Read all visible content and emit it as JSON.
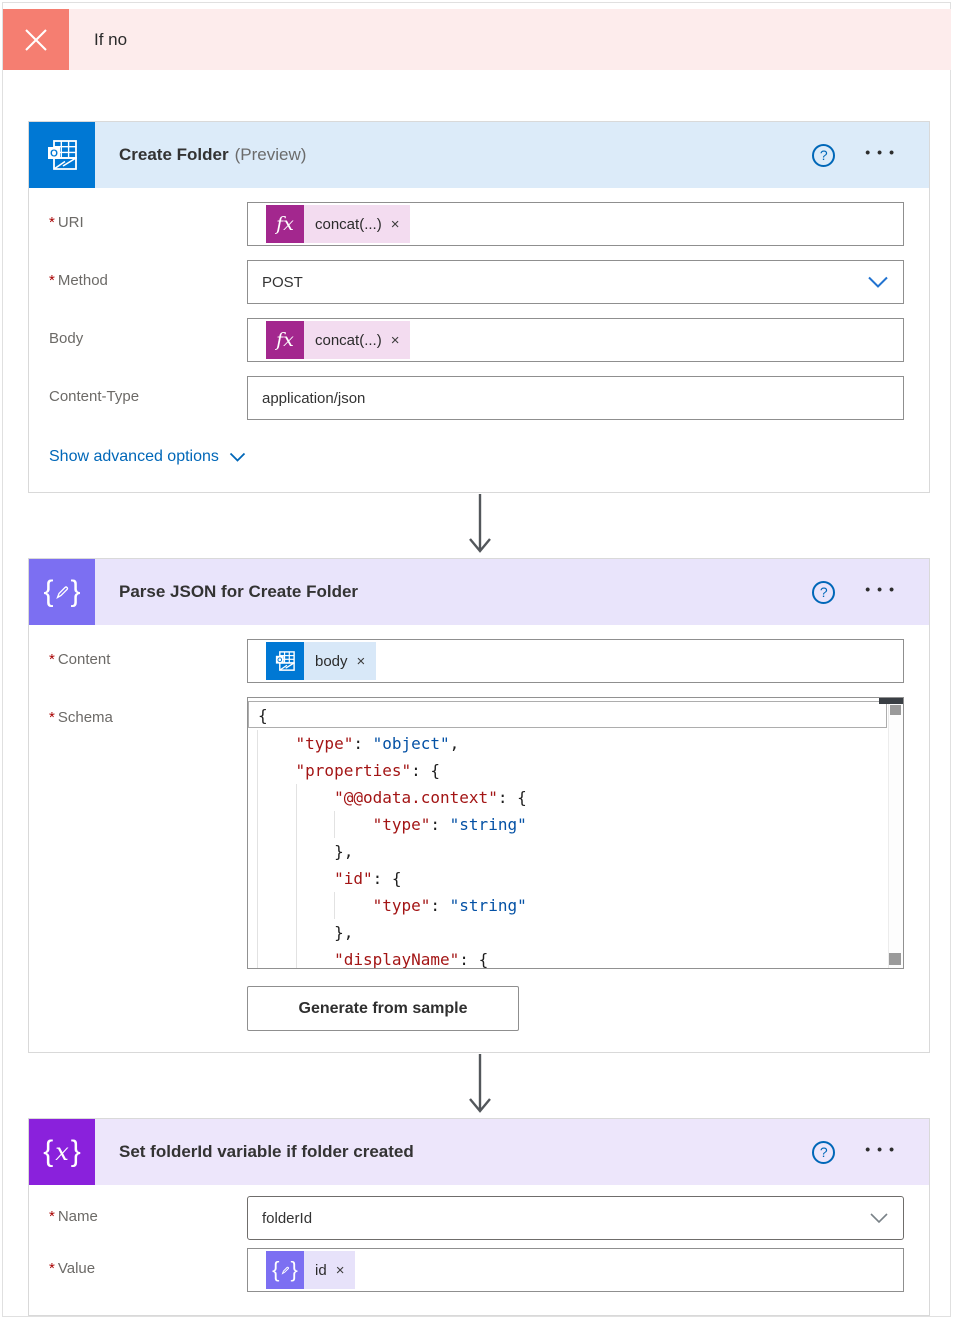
{
  "branch": {
    "title": "If no"
  },
  "cards": {
    "create_folder": {
      "title": "Create Folder",
      "suffix": "(Preview)",
      "uri_label": "URI",
      "uri_token": "concat(...)",
      "method_label": "Method",
      "method_value": "POST",
      "body_label": "Body",
      "body_token": "concat(...)",
      "content_type_label": "Content-Type",
      "content_type_value": "application/json",
      "advanced_link": "Show advanced options"
    },
    "parse_json": {
      "title": "Parse JSON for Create Folder",
      "content_label": "Content",
      "content_token": "body",
      "schema_label": "Schema",
      "generate_button": "Generate from sample",
      "schema_lines": [
        {
          "indent": 0,
          "boxed": true,
          "segs": [
            [
              "{",
              "p"
            ]
          ]
        },
        {
          "indent": 1,
          "segs": [
            [
              "\"type\"",
              "k"
            ],
            [
              ": ",
              "p"
            ],
            [
              "\"object\"",
              "s"
            ],
            [
              ",",
              "p"
            ]
          ]
        },
        {
          "indent": 1,
          "segs": [
            [
              "\"properties\"",
              "k"
            ],
            [
              ": {",
              "p"
            ]
          ]
        },
        {
          "indent": 2,
          "segs": [
            [
              "\"@@odata.context\"",
              "k"
            ],
            [
              ": {",
              "p"
            ]
          ]
        },
        {
          "indent": 3,
          "segs": [
            [
              "\"type\"",
              "k"
            ],
            [
              ": ",
              "p"
            ],
            [
              "\"string\"",
              "s"
            ]
          ]
        },
        {
          "indent": 2,
          "segs": [
            [
              "},",
              "p"
            ]
          ]
        },
        {
          "indent": 2,
          "segs": [
            [
              "\"id\"",
              "k"
            ],
            [
              ": {",
              "p"
            ]
          ]
        },
        {
          "indent": 3,
          "segs": [
            [
              "\"type\"",
              "k"
            ],
            [
              ": ",
              "p"
            ],
            [
              "\"string\"",
              "s"
            ]
          ]
        },
        {
          "indent": 2,
          "segs": [
            [
              "},",
              "p"
            ]
          ]
        },
        {
          "indent": 2,
          "segs": [
            [
              "\"displayName\"",
              "k"
            ],
            [
              ": {",
              "p"
            ]
          ]
        }
      ]
    },
    "set_variable": {
      "title": "Set folderId variable if folder created",
      "name_label": "Name",
      "name_value": "folderId",
      "value_label": "Value",
      "value_token": "id"
    }
  },
  "glyphs": {
    "fx": "fx",
    "close": "×",
    "help": "?",
    "ellipsis": "•••",
    "outlook_o": "O"
  },
  "colors": {
    "branch_salmon": "#f57e71",
    "branch_pink": "#fdecec",
    "outlook_blue": "#0078d4",
    "parse_purple": "#7c6ff2",
    "variable_purple": "#8a21dc",
    "fx_magenta": "#a3278e",
    "link_blue": "#0067b8",
    "json_key": "#a31515",
    "json_string": "#0451a5"
  }
}
